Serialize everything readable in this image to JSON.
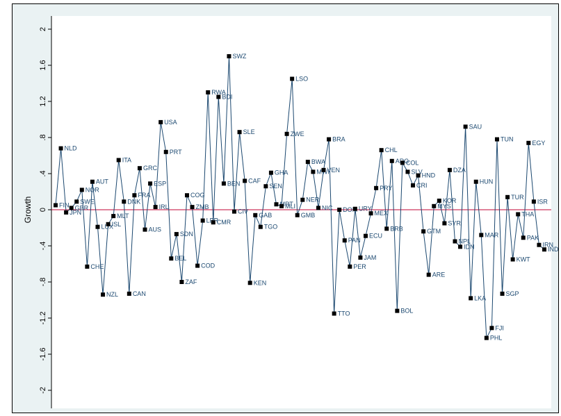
{
  "chart_data": {
    "type": "line",
    "xlabel": "",
    "ylabel": "Growth",
    "ylim": [
      -2.1,
      2.1
    ],
    "yticks": [
      -2,
      -1.6,
      -1.2,
      -0.8,
      -0.4,
      0,
      0.4,
      0.8,
      1.2,
      1.6,
      2
    ],
    "ytick_labels": [
      "-2",
      "-1.6",
      "-1.2",
      "-.8",
      "-.4",
      "0",
      ".4",
      ".8",
      "1.2",
      "1.6",
      "2"
    ],
    "reference_line_y": 0,
    "grid": false,
    "legend": "none",
    "colors": {
      "line": "#1a476f",
      "marker": "#000000",
      "label": "#1a476f",
      "reference": "#c10534",
      "plot_bg": "#ffffff",
      "outer_bg": "#eaf2f3"
    },
    "series": [
      {
        "points": [
          {
            "label": "FIN",
            "y": 0.05
          },
          {
            "label": "NLD",
            "y": 0.68
          },
          {
            "label": "JPN",
            "y": -0.03
          },
          {
            "label": "GBR",
            "y": 0.02
          },
          {
            "label": "SWE",
            "y": 0.09
          },
          {
            "label": "NOR",
            "y": 0.22
          },
          {
            "label": "CHE",
            "y": -0.63
          },
          {
            "label": "AUT",
            "y": 0.31
          },
          {
            "label": "LUX",
            "y": -0.19
          },
          {
            "label": "NZL",
            "y": -0.94
          },
          {
            "label": "ISL",
            "y": -0.16
          },
          {
            "label": "MLT",
            "y": -0.07
          },
          {
            "label": "ITA",
            "y": 0.55
          },
          {
            "label": "DNK",
            "y": 0.09
          },
          {
            "label": "CAN",
            "y": -0.93
          },
          {
            "label": "FRA",
            "y": 0.16
          },
          {
            "label": "GRC",
            "y": 0.46
          },
          {
            "label": "AUS",
            "y": -0.22
          },
          {
            "label": "ESP",
            "y": 0.29
          },
          {
            "label": "IRL",
            "y": 0.03
          },
          {
            "label": "USA",
            "y": 0.97
          },
          {
            "label": "PRT",
            "y": 0.64
          },
          {
            "label": "BEL",
            "y": -0.54
          },
          {
            "label": "SDN",
            "y": -0.27
          },
          {
            "label": "ZAF",
            "y": -0.8
          },
          {
            "label": "COG",
            "y": 0.16
          },
          {
            "label": "ZMB",
            "y": 0.03
          },
          {
            "label": "COD",
            "y": -0.62
          },
          {
            "label": "LBR",
            "y": -0.12
          },
          {
            "label": "RWA",
            "y": 1.3
          },
          {
            "label": "CMR",
            "y": -0.14
          },
          {
            "label": "BDI",
            "y": 1.25
          },
          {
            "label": "BEN",
            "y": 0.29
          },
          {
            "label": "SWZ",
            "y": 1.7
          },
          {
            "label": "CIV",
            "y": -0.02
          },
          {
            "label": "SLE",
            "y": 0.86
          },
          {
            "label": "CAF",
            "y": 0.32
          },
          {
            "label": "KEN",
            "y": -0.81
          },
          {
            "label": "GAB",
            "y": -0.06
          },
          {
            "label": "TGO",
            "y": -0.19
          },
          {
            "label": "SEN",
            "y": 0.26
          },
          {
            "label": "GHA",
            "y": 0.41
          },
          {
            "label": "MRT",
            "y": 0.06
          },
          {
            "label": "MLI",
            "y": 0.04
          },
          {
            "label": "ZWE",
            "y": 0.84
          },
          {
            "label": "LSO",
            "y": 1.45
          },
          {
            "label": "GMB",
            "y": -0.06
          },
          {
            "label": "NER",
            "y": 0.11
          },
          {
            "label": "BWA",
            "y": 0.53
          },
          {
            "label": "MWI",
            "y": 0.42
          },
          {
            "label": "NIC",
            "y": 0.02
          },
          {
            "label": "VEN",
            "y": 0.44
          },
          {
            "label": "BRA",
            "y": 0.78
          },
          {
            "label": "TTO",
            "y": -1.15
          },
          {
            "label": "DOM",
            "y": 0.0
          },
          {
            "label": "PAN",
            "y": -0.34
          },
          {
            "label": "PER",
            "y": -0.63
          },
          {
            "label": "URY",
            "y": 0.01
          },
          {
            "label": "JAM",
            "y": -0.53
          },
          {
            "label": "ECU",
            "y": -0.29
          },
          {
            "label": "MEX",
            "y": -0.04
          },
          {
            "label": "PRY",
            "y": 0.24
          },
          {
            "label": "CHL",
            "y": 0.66
          },
          {
            "label": "BRB",
            "y": -0.21
          },
          {
            "label": "ARG",
            "y": 0.54
          },
          {
            "label": "BOL",
            "y": -1.12
          },
          {
            "label": "COL",
            "y": 0.52
          },
          {
            "label": "SLV",
            "y": 0.42
          },
          {
            "label": "CRI",
            "y": 0.27
          },
          {
            "label": "HND",
            "y": 0.38
          },
          {
            "label": "GTM",
            "y": -0.24
          },
          {
            "label": "ARE",
            "y": -0.72
          },
          {
            "label": "MYS",
            "y": 0.04
          },
          {
            "label": "KOR",
            "y": 0.1
          },
          {
            "label": "SYR",
            "y": -0.15
          },
          {
            "label": "DZA",
            "y": 0.44
          },
          {
            "label": "NPL",
            "y": -0.35
          },
          {
            "label": "IDN",
            "y": -0.41
          },
          {
            "label": "SAU",
            "y": 0.92
          },
          {
            "label": "LKA",
            "y": -0.98
          },
          {
            "label": "HUN",
            "y": 0.31
          },
          {
            "label": "MAR",
            "y": -0.28
          },
          {
            "label": "PHL",
            "y": -1.42
          },
          {
            "label": "FJI",
            "y": -1.31
          },
          {
            "label": "TUN",
            "y": 0.78
          },
          {
            "label": "SGP",
            "y": -0.93
          },
          {
            "label": "TUR",
            "y": 0.14
          },
          {
            "label": "KWT",
            "y": -0.55
          },
          {
            "label": "THA",
            "y": -0.05
          },
          {
            "label": "PAK",
            "y": -0.31
          },
          {
            "label": "EGY",
            "y": 0.74
          },
          {
            "label": "ISR",
            "y": 0.09
          },
          {
            "label": "IRN",
            "y": -0.39
          },
          {
            "label": "IND",
            "y": -0.44
          }
        ]
      }
    ]
  }
}
